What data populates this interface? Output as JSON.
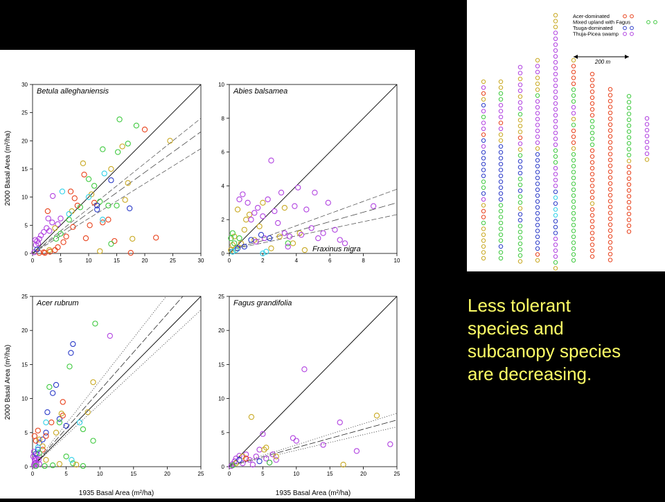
{
  "colors": {
    "acer": "#e8401a",
    "fagus": "#3ec93e",
    "tsuga": "#2a3ac8",
    "thuja": "#b040e0",
    "olive": "#c8a820",
    "cyan": "#30d0e8",
    "caption": "#ffff66"
  },
  "caption": {
    "lines": [
      "Less tolerant",
      "species and",
      "subcanopy species",
      "are decreasing."
    ]
  },
  "map": {
    "legend": [
      {
        "label": "Acer-dominated",
        "color": "#e8401a"
      },
      {
        "label": "Mixed upland with Fagus",
        "color": "#3ec93e"
      },
      {
        "label": "Tsuga-dominated",
        "color": "#2a3ac8"
      },
      {
        "label": "Thuja-Picea swamp",
        "color": "#b040e0"
      }
    ],
    "scale_label": "200 m"
  },
  "y_axis_label": "2000 Basal Area (m²/ha)",
  "x_axis_label": "1935 Basal Area (m²/ha)",
  "chart_data": [
    {
      "type": "scatter",
      "title": "Betula alleghaniensis",
      "xlim": [
        0,
        30
      ],
      "ylim": [
        0,
        30
      ],
      "xticks": [
        0,
        5,
        10,
        15,
        20,
        25,
        30
      ],
      "yticks": [
        0,
        5,
        10,
        15,
        20,
        25,
        30
      ],
      "xlabel": "",
      "ylabel": "2000 Basal Area (m²/ha)",
      "regression": {
        "slope": 0.72,
        "intercept": 0,
        "ci_low": 0.62,
        "ci_high": 0.8,
        "style": "dashed"
      },
      "points": [
        [
          0.3,
          0.2,
          "thuja"
        ],
        [
          0.6,
          1.5,
          "thuja"
        ],
        [
          0.8,
          2.2,
          "thuja"
        ],
        [
          1.0,
          1.8,
          "thuja"
        ],
        [
          1.2,
          2.6,
          "thuja"
        ],
        [
          0.5,
          2.4,
          "thuja"
        ],
        [
          1.5,
          3.2,
          "thuja"
        ],
        [
          2.0,
          3.8,
          "thuja"
        ],
        [
          2.5,
          4.5,
          "thuja"
        ],
        [
          3.0,
          4.0,
          "thuja"
        ],
        [
          3.5,
          5.5,
          "thuja"
        ],
        [
          4.5,
          5.2,
          "thuja"
        ],
        [
          5.0,
          6.2,
          "thuja"
        ],
        [
          2.8,
          6.2,
          "thuja"
        ],
        [
          3.6,
          10.2,
          "thuja"
        ],
        [
          1.2,
          0.1,
          "acer"
        ],
        [
          2.0,
          0.2,
          "acer"
        ],
        [
          2.2,
          0.1,
          "acer"
        ],
        [
          3.1,
          0.3,
          "acer"
        ],
        [
          4.0,
          0.6,
          "acer"
        ],
        [
          4.5,
          1.1,
          "acer"
        ],
        [
          5.5,
          2.0,
          "acer"
        ],
        [
          6.0,
          3.0,
          "acer"
        ],
        [
          2.7,
          7.5,
          "acer"
        ],
        [
          7.2,
          4.7,
          "acer"
        ],
        [
          8.0,
          8.5,
          "acer"
        ],
        [
          9.2,
          14.0,
          "acer"
        ],
        [
          10.2,
          5.0,
          "acer"
        ],
        [
          11.0,
          9.0,
          "acer"
        ],
        [
          12.5,
          5.5,
          "acer"
        ],
        [
          13.5,
          6.0,
          "acer"
        ],
        [
          14.6,
          2.2,
          "acer"
        ],
        [
          17.5,
          0.1,
          "acer"
        ],
        [
          20.0,
          22.0,
          "acer"
        ],
        [
          22.0,
          2.8,
          "acer"
        ],
        [
          9.5,
          2.7,
          "acer"
        ],
        [
          6.8,
          11.0,
          "acer"
        ],
        [
          7.5,
          9.8,
          "acer"
        ],
        [
          5.0,
          3.5,
          "fagus"
        ],
        [
          6.5,
          6.0,
          "fagus"
        ],
        [
          8.5,
          8.2,
          "fagus"
        ],
        [
          10.0,
          13.2,
          "fagus"
        ],
        [
          11.0,
          12.0,
          "fagus"
        ],
        [
          12.5,
          18.5,
          "fagus"
        ],
        [
          13.5,
          8.5,
          "fagus"
        ],
        [
          15.5,
          23.8,
          "fagus"
        ],
        [
          15.2,
          18.0,
          "fagus"
        ],
        [
          17.0,
          19.5,
          "fagus"
        ],
        [
          18.5,
          22.7,
          "fagus"
        ],
        [
          12.0,
          9.2,
          "fagus"
        ],
        [
          14.0,
          1.7,
          "fagus"
        ],
        [
          15.0,
          8.5,
          "fagus"
        ],
        [
          4.2,
          2.6,
          "fagus"
        ],
        [
          3.0,
          0.6,
          "olive"
        ],
        [
          4.0,
          4.5,
          "olive"
        ],
        [
          7.0,
          7.5,
          "olive"
        ],
        [
          9.0,
          16.0,
          "olive"
        ],
        [
          10.5,
          10.5,
          "olive"
        ],
        [
          14.0,
          15.0,
          "olive"
        ],
        [
          16.0,
          19.0,
          "olive"
        ],
        [
          16.5,
          9.5,
          "olive"
        ],
        [
          17.0,
          12.5,
          "olive"
        ],
        [
          17.8,
          2.6,
          "olive"
        ],
        [
          24.5,
          20.0,
          "olive"
        ],
        [
          12.0,
          0.4,
          "olive"
        ],
        [
          5.3,
          11.0,
          "cyan"
        ],
        [
          6.5,
          7.0,
          "cyan"
        ],
        [
          10.0,
          10.0,
          "cyan"
        ],
        [
          12.8,
          14.2,
          "cyan"
        ],
        [
          12.5,
          6.0,
          "cyan"
        ],
        [
          11.5,
          8.5,
          "tsuga"
        ],
        [
          14.0,
          13.0,
          "tsuga"
        ],
        [
          17.3,
          8.0,
          "tsuga"
        ],
        [
          11.5,
          7.8,
          "tsuga"
        ],
        [
          0.8,
          0.7,
          "tsuga"
        ]
      ]
    },
    {
      "type": "scatter",
      "title": "Abies balsamea",
      "xlim": [
        0,
        10
      ],
      "ylim": [
        0,
        10
      ],
      "xticks": [
        0,
        2,
        4,
        6,
        8,
        10
      ],
      "yticks": [
        0,
        2,
        4,
        6,
        8,
        10
      ],
      "xlabel": "",
      "ylabel": "",
      "annotation": "Fraxinus nigra",
      "regression": {
        "slope": 0.28,
        "intercept": 0.2,
        "ci_low": 0.21,
        "ci_high": 0.36,
        "style": "dashed"
      },
      "points": [
        [
          0.1,
          0.2,
          "olive"
        ],
        [
          0.2,
          0.5,
          "olive"
        ],
        [
          0.3,
          1.0,
          "olive"
        ],
        [
          0.4,
          0.3,
          "olive"
        ],
        [
          0.5,
          2.6,
          "olive"
        ],
        [
          0.7,
          0.6,
          "olive"
        ],
        [
          0.9,
          1.4,
          "olive"
        ],
        [
          1.0,
          2.0,
          "olive"
        ],
        [
          1.2,
          2.3,
          "olive"
        ],
        [
          1.5,
          0.8,
          "olive"
        ],
        [
          1.8,
          1.6,
          "olive"
        ],
        [
          2.0,
          3.0,
          "olive"
        ],
        [
          2.5,
          0.3,
          "olive"
        ],
        [
          3.0,
          1.0,
          "olive"
        ],
        [
          3.3,
          2.7,
          "olive"
        ],
        [
          3.8,
          0.6,
          "olive"
        ],
        [
          4.2,
          1.2,
          "olive"
        ],
        [
          4.5,
          0.2,
          "olive"
        ],
        [
          0.2,
          1.2,
          "fagus"
        ],
        [
          0.3,
          0.6,
          "fagus"
        ],
        [
          0.6,
          0.9,
          "fagus"
        ],
        [
          0.1,
          0.9,
          "fagus"
        ],
        [
          3.5,
          0.6,
          "fagus"
        ],
        [
          0.2,
          0.1,
          "cyan"
        ],
        [
          0.4,
          0.2,
          "cyan"
        ],
        [
          2.0,
          0.0,
          "cyan"
        ],
        [
          2.2,
          0.1,
          "cyan"
        ],
        [
          0.6,
          3.2,
          "thuja"
        ],
        [
          0.8,
          3.5,
          "thuja"
        ],
        [
          1.1,
          3.0,
          "thuja"
        ],
        [
          1.3,
          2.0,
          "thuja"
        ],
        [
          1.5,
          2.4,
          "thuja"
        ],
        [
          1.7,
          2.7,
          "thuja"
        ],
        [
          2.0,
          2.2,
          "thuja"
        ],
        [
          2.3,
          3.2,
          "thuja"
        ],
        [
          2.5,
          5.5,
          "thuja"
        ],
        [
          2.7,
          2.5,
          "thuja"
        ],
        [
          2.9,
          1.8,
          "thuja"
        ],
        [
          3.1,
          3.6,
          "thuja"
        ],
        [
          3.3,
          1.2,
          "thuja"
        ],
        [
          3.6,
          1.0,
          "thuja"
        ],
        [
          3.9,
          2.8,
          "thuja"
        ],
        [
          4.1,
          3.9,
          "thuja"
        ],
        [
          4.3,
          1.1,
          "thuja"
        ],
        [
          4.6,
          2.6,
          "thuja"
        ],
        [
          4.9,
          1.5,
          "thuja"
        ],
        [
          5.1,
          3.6,
          "thuja"
        ],
        [
          5.3,
          0.9,
          "thuja"
        ],
        [
          5.6,
          1.2,
          "thuja"
        ],
        [
          5.9,
          3.0,
          "thuja"
        ],
        [
          6.3,
          1.4,
          "thuja"
        ],
        [
          6.6,
          0.8,
          "thuja"
        ],
        [
          6.9,
          0.6,
          "thuja"
        ],
        [
          1.6,
          0.7,
          "thuja"
        ],
        [
          2.1,
          0.9,
          "thuja"
        ],
        [
          8.6,
          2.8,
          "thuja"
        ],
        [
          3.5,
          0.4,
          "thuja"
        ],
        [
          0.5,
          0.3,
          "tsuga"
        ],
        [
          0.9,
          0.4,
          "tsuga"
        ],
        [
          1.3,
          0.8,
          "tsuga"
        ],
        [
          1.9,
          1.1,
          "tsuga"
        ],
        [
          2.4,
          0.9,
          "tsuga"
        ]
      ]
    },
    {
      "type": "scatter",
      "title": "Acer rubrum",
      "xlim": [
        0,
        25
      ],
      "ylim": [
        0,
        25
      ],
      "xticks": [
        0,
        5,
        10,
        15,
        20,
        25
      ],
      "yticks": [
        0,
        5,
        10,
        15,
        20,
        25
      ],
      "xlabel": "1935 Basal Area (m²/ha)",
      "ylabel": "2000 Basal Area (m²/ha)",
      "regression": {
        "slope": 1.12,
        "intercept": 0,
        "ci_low": 0.92,
        "ci_high": 1.26,
        "style": "dotted"
      },
      "points": [
        [
          0.2,
          0.2,
          "thuja"
        ],
        [
          0.3,
          0.5,
          "thuja"
        ],
        [
          0.4,
          0.9,
          "thuja"
        ],
        [
          0.5,
          1.3,
          "thuja"
        ],
        [
          0.6,
          0.3,
          "thuja"
        ],
        [
          0.7,
          1.8,
          "thuja"
        ],
        [
          0.2,
          2.2,
          "thuja"
        ],
        [
          0.9,
          1.0,
          "thuja"
        ],
        [
          1.0,
          0.4,
          "thuja"
        ],
        [
          0.1,
          1.5,
          "thuja"
        ],
        [
          0.4,
          0.1,
          "thuja"
        ],
        [
          0.3,
          1.1,
          "thuja"
        ],
        [
          0.5,
          0.6,
          "thuja"
        ],
        [
          0.5,
          1.9,
          "tsuga"
        ],
        [
          0.8,
          2.5,
          "tsuga"
        ],
        [
          1.0,
          3.5,
          "tsuga"
        ],
        [
          1.5,
          4.0,
          "tsuga"
        ],
        [
          2.0,
          5.0,
          "tsuga"
        ],
        [
          2.2,
          8.0,
          "tsuga"
        ],
        [
          3.0,
          10.8,
          "tsuga"
        ],
        [
          3.5,
          12.0,
          "tsuga"
        ],
        [
          4.0,
          7.0,
          "tsuga"
        ],
        [
          5.0,
          6.0,
          "tsuga"
        ],
        [
          5.7,
          16.7,
          "tsuga"
        ],
        [
          6.0,
          18.0,
          "tsuga"
        ],
        [
          11.5,
          19.2,
          "thuja"
        ],
        [
          0.5,
          3.8,
          "acer"
        ],
        [
          0.8,
          5.3,
          "acer"
        ],
        [
          1.5,
          2.5,
          "acer"
        ],
        [
          2.0,
          4.5,
          "acer"
        ],
        [
          2.8,
          6.5,
          "acer"
        ],
        [
          4.5,
          9.5,
          "acer"
        ],
        [
          4.5,
          7.5,
          "acer"
        ],
        [
          0.3,
          4.5,
          "acer"
        ],
        [
          1.0,
          2.0,
          "fagus"
        ],
        [
          2.5,
          11.7,
          "fagus"
        ],
        [
          4.0,
          6.5,
          "fagus"
        ],
        [
          5.5,
          14.7,
          "fagus"
        ],
        [
          7.5,
          5.5,
          "fagus"
        ],
        [
          9.3,
          21.0,
          "fagus"
        ],
        [
          5.0,
          1.5,
          "fagus"
        ],
        [
          9.0,
          3.8,
          "fagus"
        ],
        [
          6.0,
          0.5,
          "fagus"
        ],
        [
          1.0,
          4.0,
          "olive"
        ],
        [
          1.5,
          3.0,
          "olive"
        ],
        [
          2.0,
          1.0,
          "olive"
        ],
        [
          3.5,
          5.0,
          "olive"
        ],
        [
          4.3,
          7.8,
          "olive"
        ],
        [
          8.2,
          8.0,
          "olive"
        ],
        [
          9.0,
          12.4,
          "olive"
        ],
        [
          6.5,
          0.3,
          "olive"
        ],
        [
          4.0,
          0.4,
          "olive"
        ],
        [
          2.0,
          6.5,
          "cyan"
        ],
        [
          7.0,
          6.5,
          "cyan"
        ],
        [
          5.8,
          1.0,
          "cyan"
        ],
        [
          0.8,
          2.8,
          "cyan"
        ],
        [
          0.5,
          0.1,
          "fagus"
        ],
        [
          1.8,
          0.1,
          "fagus"
        ],
        [
          3.0,
          0.2,
          "fagus"
        ],
        [
          7.5,
          0.1,
          "fagus"
        ]
      ]
    },
    {
      "type": "scatter",
      "title": "Fagus grandifolia",
      "xlim": [
        0,
        25
      ],
      "ylim": [
        0,
        25
      ],
      "xticks": [
        0,
        5,
        10,
        15,
        20,
        25
      ],
      "yticks": [
        0,
        5,
        10,
        15,
        20,
        25
      ],
      "xlabel": "1935 Basal Area (m²/ha)",
      "ylabel": "",
      "regression": {
        "slope": 0.27,
        "intercept": 0.1,
        "ci_low": 0.23,
        "ci_high": 0.31,
        "style": "dotted"
      },
      "points": [
        [
          0.3,
          0.1,
          "thuja"
        ],
        [
          0.5,
          0.4,
          "thuja"
        ],
        [
          0.8,
          0.8,
          "thuja"
        ],
        [
          1.0,
          1.2,
          "thuja"
        ],
        [
          1.5,
          1.6,
          "thuja"
        ],
        [
          2.0,
          0.5,
          "thuja"
        ],
        [
          2.5,
          1.8,
          "thuja"
        ],
        [
          3.0,
          1.0,
          "thuja"
        ],
        [
          3.5,
          0.3,
          "thuja"
        ],
        [
          4.0,
          1.5,
          "thuja"
        ],
        [
          4.5,
          2.5,
          "thuja"
        ],
        [
          5.0,
          4.8,
          "thuja"
        ],
        [
          5.5,
          1.2,
          "thuja"
        ],
        [
          6.0,
          0.6,
          "thuja"
        ],
        [
          6.5,
          1.8,
          "thuja"
        ],
        [
          7.0,
          1.0,
          "thuja"
        ],
        [
          10.0,
          3.8,
          "thuja"
        ],
        [
          11.2,
          14.3,
          "thuja"
        ],
        [
          14.0,
          3.2,
          "thuja"
        ],
        [
          16.5,
          6.5,
          "thuja"
        ],
        [
          19.0,
          2.3,
          "thuja"
        ],
        [
          24.0,
          3.3,
          "thuja"
        ],
        [
          9.5,
          4.2,
          "thuja"
        ],
        [
          1.0,
          0.5,
          "olive"
        ],
        [
          2.0,
          1.5,
          "olive"
        ],
        [
          3.3,
          7.3,
          "olive"
        ],
        [
          5.2,
          2.5,
          "olive"
        ],
        [
          5.5,
          2.8,
          "olive"
        ],
        [
          7.0,
          1.5,
          "olive"
        ],
        [
          17.0,
          0.3,
          "olive"
        ],
        [
          22.0,
          7.5,
          "olive"
        ],
        [
          1.5,
          1.0,
          "tsuga"
        ],
        [
          4.5,
          0.8,
          "tsuga"
        ],
        [
          0.5,
          0.2,
          "fagus"
        ],
        [
          6.0,
          0.6,
          "fagus"
        ],
        [
          2.5,
          1.2,
          "acer"
        ]
      ]
    }
  ]
}
